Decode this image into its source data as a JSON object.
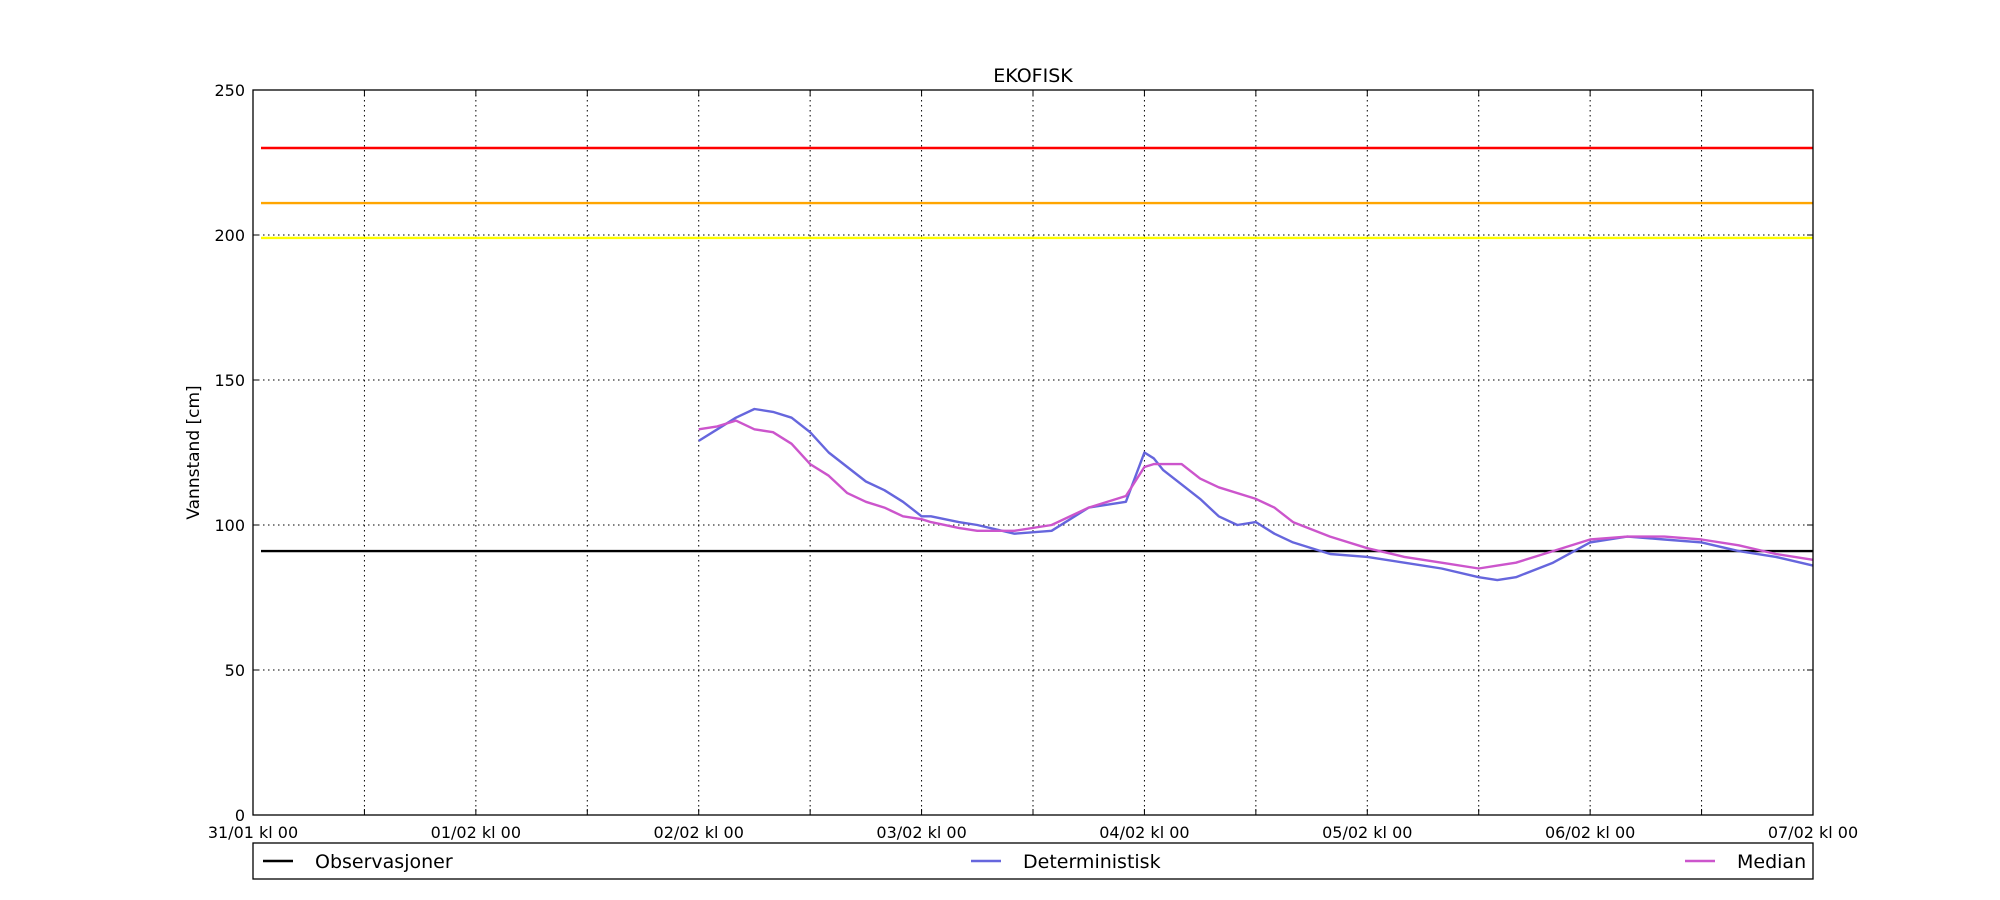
{
  "chart_data": {
    "type": "line",
    "title": "EKOFISK",
    "xlabel": "",
    "ylabel": "Vannstand [cm]",
    "ylim": [
      0,
      250
    ],
    "xlim": [
      "31/01 kl 00",
      "07/02 kl 00"
    ],
    "grid": true,
    "y_ticks": [
      0,
      50,
      100,
      150,
      200,
      250
    ],
    "x_ticks": [
      "31/01 kl 00",
      "01/02 kl 00",
      "02/02 kl 00",
      "03/02 kl 00",
      "04/02 kl 00",
      "05/02 kl 00",
      "06/02 kl 00",
      "07/02 kl 00"
    ],
    "x_tick_labels": [
      "31/01 kl 00",
      "01/02 kl 00",
      "02/02 kl 00",
      "03/02 kl 00",
      "04/02 kl 00",
      "05/02 kl 00",
      "06/02 kl 00",
      "07/02 kl 00"
    ],
    "x_minor_ticks": [
      "31/01 kl 12",
      "01/02 kl 12",
      "02/02 kl 12",
      "03/02 kl 12",
      "04/02 kl 12",
      "05/02 kl 12",
      "06/02 kl 12"
    ],
    "threshold_lines": [
      {
        "value": 230,
        "color": "#ff0000"
      },
      {
        "value": 211,
        "color": "#ffa500"
      },
      {
        "value": 199,
        "color": "#ffff00"
      },
      {
        "value": 91,
        "color": "#000000"
      }
    ],
    "series": [
      {
        "name": "Deterministisk",
        "color": "#6666dd",
        "x": [
          "02/02 kl 00",
          "02/02 kl 02",
          "02/02 kl 04",
          "02/02 kl 06",
          "02/02 kl 08",
          "02/02 kl 10",
          "02/02 kl 12",
          "02/02 kl 14",
          "02/02 kl 16",
          "02/02 kl 18",
          "02/02 kl 20",
          "02/02 kl 22",
          "03/02 kl 00",
          "03/02 kl 01",
          "03/02 kl 04",
          "03/02 kl 06",
          "03/02 kl 10",
          "03/02 kl 14",
          "03/02 kl 18",
          "03/02 kl 22",
          "04/02 kl 00",
          "04/02 kl 01",
          "04/02 kl 02",
          "04/02 kl 04",
          "04/02 kl 06",
          "04/02 kl 08",
          "04/02 kl 10",
          "04/02 kl 12",
          "04/02 kl 14",
          "04/02 kl 16",
          "04/02 kl 20",
          "05/02 kl 00",
          "05/02 kl 04",
          "05/02 kl 08",
          "05/02 kl 12",
          "05/02 kl 14",
          "05/02 kl 16",
          "05/02 kl 20",
          "06/02 kl 00",
          "06/02 kl 04",
          "06/02 kl 08",
          "06/02 kl 12",
          "06/02 kl 16",
          "06/02 kl 20",
          "07/02 kl 00"
        ],
        "y": [
          129,
          133,
          137,
          140,
          139,
          137,
          132,
          125,
          120,
          115,
          112,
          108,
          103,
          103,
          101,
          100,
          97,
          98,
          106,
          108,
          125,
          123,
          119,
          114,
          109,
          103,
          100,
          101,
          97,
          94,
          90,
          89,
          87,
          85,
          82,
          81,
          82,
          87,
          94,
          96,
          95,
          94,
          91,
          89,
          86
        ]
      },
      {
        "name": "Median",
        "color": "#cc55cc",
        "x": [
          "02/02 kl 00",
          "02/02 kl 02",
          "02/02 kl 04",
          "02/02 kl 06",
          "02/02 kl 08",
          "02/02 kl 10",
          "02/02 kl 12",
          "02/02 kl 14",
          "02/02 kl 16",
          "02/02 kl 18",
          "02/02 kl 20",
          "02/02 kl 22",
          "03/02 kl 00",
          "03/02 kl 01",
          "03/02 kl 04",
          "03/02 kl 06",
          "03/02 kl 10",
          "03/02 kl 14",
          "03/02 kl 18",
          "03/02 kl 22",
          "04/02 kl 00",
          "04/02 kl 01",
          "04/02 kl 04",
          "04/02 kl 06",
          "04/02 kl 08",
          "04/02 kl 12",
          "04/02 kl 14",
          "04/02 kl 16",
          "04/02 kl 20",
          "05/02 kl 00",
          "05/02 kl 04",
          "05/02 kl 08",
          "05/02 kl 12",
          "05/02 kl 14",
          "05/02 kl 16",
          "05/02 kl 20",
          "06/02 kl 00",
          "06/02 kl 04",
          "06/02 kl 08",
          "06/02 kl 12",
          "06/02 kl 16",
          "06/02 kl 20",
          "07/02 kl 00"
        ],
        "y": [
          133,
          134,
          136,
          133,
          132,
          128,
          121,
          117,
          111,
          108,
          106,
          103,
          102,
          101,
          99,
          98,
          98,
          100,
          106,
          110,
          120,
          121,
          121,
          116,
          113,
          109,
          106,
          101,
          96,
          92,
          89,
          87,
          85,
          86,
          87,
          91,
          95,
          96,
          96,
          95,
          93,
          90,
          88
        ]
      }
    ],
    "legend": {
      "placement": "bottom",
      "entries": [
        {
          "label": "Observasjoner",
          "color": "#000000"
        },
        {
          "label": "Deterministisk",
          "color": "#6666dd"
        },
        {
          "label": "Median",
          "color": "#cc55cc"
        }
      ]
    }
  }
}
